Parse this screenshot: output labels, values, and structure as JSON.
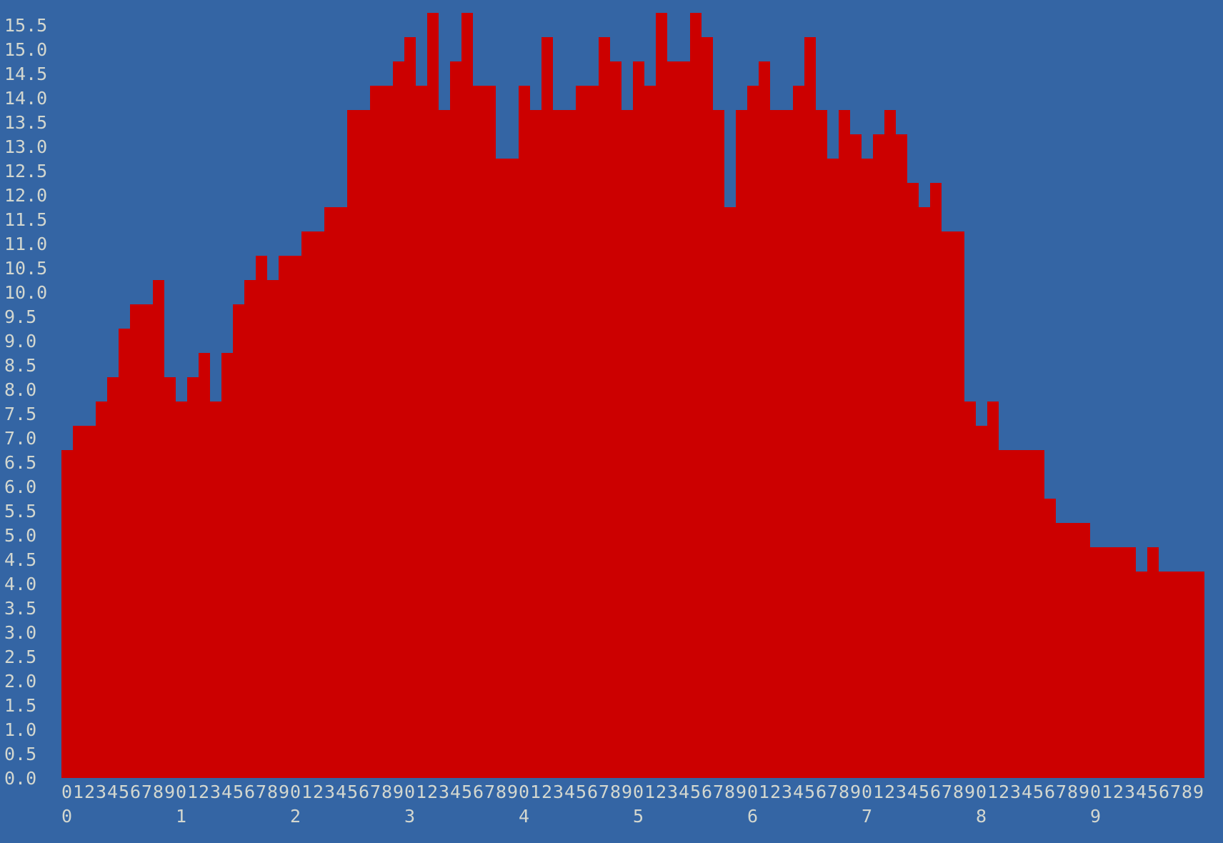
{
  "chart_data": {
    "type": "bar",
    "title": "",
    "xlabel": "",
    "ylabel": "",
    "ylim": [
      0,
      15.5
    ],
    "y_tick_labels": [
      "0.0",
      "0.5",
      "1.0",
      "1.5",
      "2.0",
      "2.5",
      "3.0",
      "3.5",
      "4.0",
      "4.5",
      "5.0",
      "5.5",
      "6.0",
      "6.5",
      "7.0",
      "7.5",
      "8.0",
      "8.5",
      "9.0",
      "9.5",
      "10.0",
      "10.5",
      "11.0",
      "11.5",
      "12.0",
      "12.5",
      "13.0",
      "13.5",
      "14.0",
      "14.5",
      "15.0",
      "15.5"
    ],
    "x_minor_tick_labels": [
      "0",
      "1",
      "2",
      "3",
      "4",
      "5",
      "6",
      "7",
      "8",
      "9",
      "0",
      "1",
      "2",
      "3",
      "4",
      "5",
      "6",
      "7",
      "8",
      "9",
      "0",
      "1",
      "2",
      "3",
      "4",
      "5",
      "6",
      "7",
      "8",
      "9",
      "0",
      "1",
      "2",
      "3",
      "4",
      "5",
      "6",
      "7",
      "8",
      "9",
      "0",
      "1",
      "2",
      "3",
      "4",
      "5",
      "6",
      "7",
      "8",
      "9",
      "0",
      "1",
      "2",
      "3",
      "4",
      "5",
      "6",
      "7",
      "8",
      "9",
      "0",
      "1",
      "2",
      "3",
      "4",
      "5",
      "6",
      "7",
      "8",
      "9",
      "0",
      "1",
      "2",
      "3",
      "4",
      "5",
      "6",
      "7",
      "8",
      "9",
      "0",
      "1",
      "2",
      "3",
      "4",
      "5",
      "6",
      "7",
      "8",
      "9",
      "0",
      "1",
      "2",
      "3",
      "4",
      "5",
      "6",
      "7",
      "8",
      "9"
    ],
    "x_major_tick_labels": [
      "0",
      "1",
      "2",
      "3",
      "4",
      "5",
      "6",
      "7",
      "8",
      "9"
    ],
    "grid": false,
    "colors": {
      "background": "#3465a4",
      "bar": "#cc0000",
      "text": "#d3d7cf"
    },
    "values": [
      6.5,
      7,
      7,
      7.5,
      8,
      9,
      9.5,
      9.5,
      10,
      8,
      7.5,
      8,
      8.5,
      7.5,
      8.5,
      9.5,
      10,
      10.5,
      10,
      10.5,
      10.5,
      11,
      11,
      11.5,
      11.5,
      13.5,
      13.5,
      14,
      14,
      14.5,
      15,
      14,
      15.5,
      13.5,
      14.5,
      15.5,
      14,
      14,
      12.5,
      12.5,
      14,
      13.5,
      15,
      13.5,
      13.5,
      14,
      14,
      15,
      14.5,
      13.5,
      14.5,
      14,
      15.5,
      14.5,
      14.5,
      15.5,
      15,
      13.5,
      11.5,
      13.5,
      14,
      14.5,
      13.5,
      13.5,
      14,
      15,
      13.5,
      12.5,
      13.5,
      13,
      12.5,
      13,
      13.5,
      13,
      12,
      11.5,
      12,
      11,
      11,
      7.5,
      7,
      7.5,
      6.5,
      6.5,
      6.5,
      6.5,
      5.5,
      5,
      5,
      5,
      4.5,
      4.5,
      4.5,
      4.5,
      4,
      4.5,
      4,
      4,
      4,
      4
    ]
  }
}
